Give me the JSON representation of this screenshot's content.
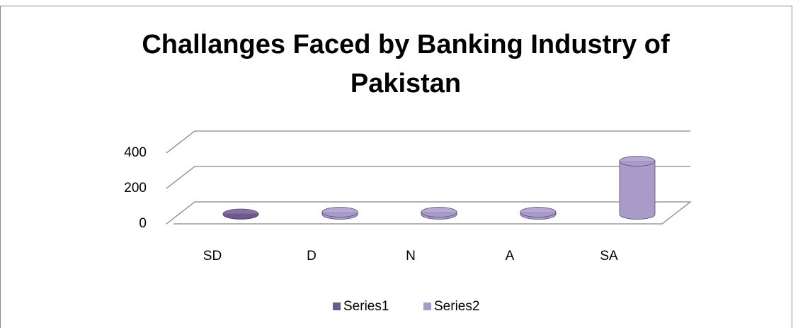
{
  "chart_data": {
    "type": "bar3d",
    "title": [
      "Challanges Faced by Banking Industry of",
      "Pakistan"
    ],
    "categories": [
      "SD",
      "D",
      "N",
      "A",
      "SA"
    ],
    "series": [
      {
        "name": "Series1",
        "color": "#6e5a8f",
        "values": [
          2,
          0,
          0,
          0,
          0
        ]
      },
      {
        "name": "Series2",
        "color": "#a99bc9",
        "values": [
          0,
          12,
          12,
          12,
          300
        ]
      }
    ],
    "ylim": [
      0,
      400
    ],
    "yticks": [
      0,
      200,
      400
    ],
    "grid": true
  }
}
